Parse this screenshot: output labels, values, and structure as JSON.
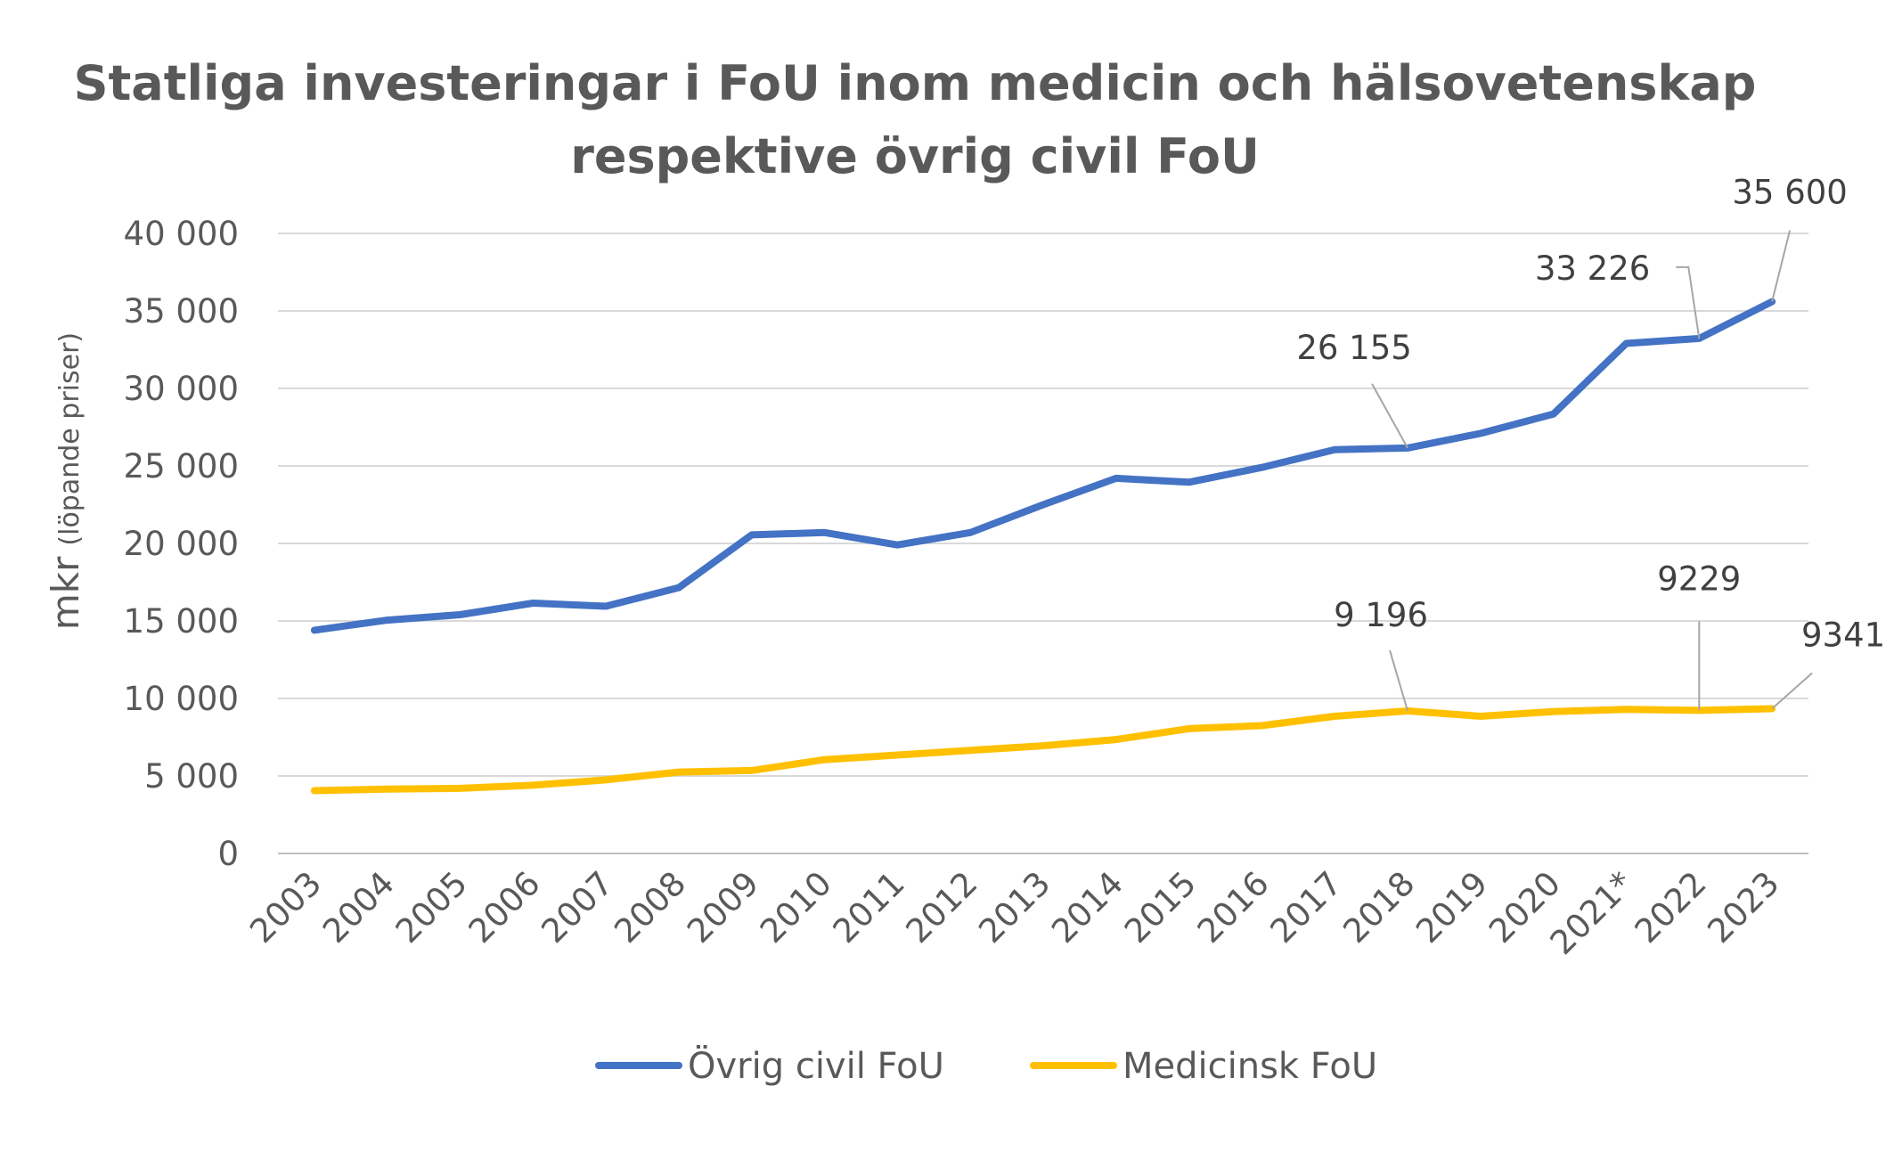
{
  "chart_data": {
    "type": "line",
    "title": [
      "Statliga investeringar i FoU inom medicin och hälsovetenskap",
      "respektive övrig civil FoU"
    ],
    "ylabel_main": "mkr",
    "ylabel_sub": "(löpande priser)",
    "xlabel": "",
    "ylim": [
      0,
      40000
    ],
    "yticks": [
      0,
      5000,
      10000,
      15000,
      20000,
      25000,
      30000,
      35000,
      40000
    ],
    "ytick_labels": [
      "0",
      "5 000",
      "10 000",
      "15 000",
      "20 000",
      "25 000",
      "30 000",
      "35 000",
      "40 000"
    ],
    "categories": [
      "2003",
      "2004",
      "2005",
      "2006",
      "2007",
      "2008",
      "2009",
      "2010",
      "2011",
      "2012",
      "2013",
      "2014",
      "2015",
      "2016",
      "2017",
      "2018",
      "2019",
      "2020",
      "2021*",
      "2022",
      "2023"
    ],
    "grid": true,
    "legend_position": "bottom",
    "series": [
      {
        "name": "Övrig civil FoU",
        "color": "#4472C4",
        "values": [
          14400,
          15050,
          15400,
          16150,
          15950,
          17150,
          20550,
          20700,
          19900,
          20700,
          22500,
          24200,
          23950,
          24900,
          26050,
          26155,
          27100,
          28350,
          32900,
          33226,
          35600
        ]
      },
      {
        "name": "Medicinsk FoU",
        "color": "#FFC000",
        "values": [
          4050,
          4150,
          4200,
          4400,
          4750,
          5250,
          5350,
          6050,
          6350,
          6650,
          6950,
          7350,
          8050,
          8250,
          8850,
          9196,
          8850,
          9150,
          9300,
          9229,
          9341
        ]
      }
    ],
    "annotations": [
      {
        "series": 0,
        "index": 15,
        "text": "26 155"
      },
      {
        "series": 0,
        "index": 19,
        "text": "33 226"
      },
      {
        "series": 0,
        "index": 20,
        "text": "35 600"
      },
      {
        "series": 1,
        "index": 15,
        "text": "9 196"
      },
      {
        "series": 1,
        "index": 19,
        "text": "9229"
      },
      {
        "series": 1,
        "index": 20,
        "text": "9341"
      }
    ]
  }
}
